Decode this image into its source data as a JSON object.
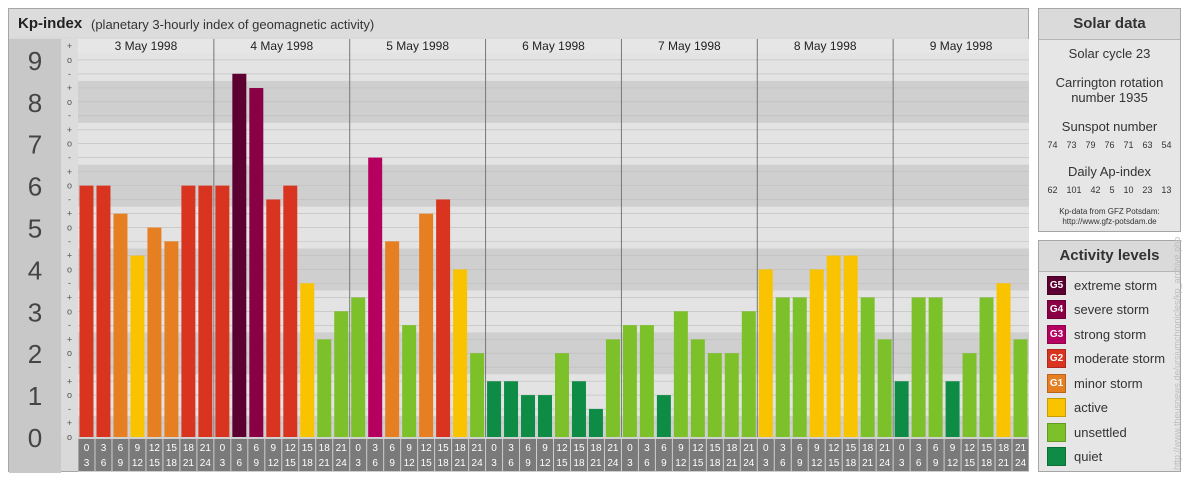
{
  "header": {
    "title": "Kp-index",
    "subtitle": "(planetary 3-hourly index of geomagnetic activity)"
  },
  "chart_data": {
    "type": "bar",
    "title": "Kp-index",
    "subtitle": "(planetary 3-hourly index of geomagnetic activity)",
    "ylim": [
      0,
      9
    ],
    "y_ticks": [
      "0",
      "1",
      "2",
      "3",
      "4",
      "5",
      "6",
      "7",
      "8",
      "9"
    ],
    "sub_ticks": [
      "o",
      "+",
      "-"
    ],
    "days": [
      "3 May 1998",
      "4 May 1998",
      "5 May 1998",
      "6 May 1998",
      "7 May 1998",
      "8 May 1998",
      "9 May 1998"
    ],
    "interval_labels": [
      [
        "0",
        "3"
      ],
      [
        "3",
        "6"
      ],
      [
        "6",
        "9"
      ],
      [
        "9",
        "12"
      ],
      [
        "12",
        "15"
      ],
      [
        "15",
        "18"
      ],
      [
        "18",
        "21"
      ],
      [
        "21",
        "24"
      ]
    ],
    "values": [
      [
        6.0,
        6.0,
        5.33,
        4.33,
        5.0,
        4.67,
        6.0,
        6.0
      ],
      [
        6.0,
        8.67,
        8.33,
        5.67,
        6.0,
        3.67,
        2.33,
        3.0
      ],
      [
        3.33,
        6.67,
        4.67,
        2.67,
        5.33,
        5.67,
        4.0,
        2.0
      ],
      [
        1.33,
        1.33,
        1.0,
        1.0,
        2.0,
        1.33,
        0.67,
        2.33
      ],
      [
        2.67,
        2.67,
        1.0,
        3.0,
        2.33,
        2.0,
        2.0,
        3.0
      ],
      [
        4.0,
        3.33,
        3.33,
        4.0,
        4.33,
        4.33,
        3.33,
        2.33
      ],
      [
        1.33,
        3.33,
        3.33,
        1.33,
        2.0,
        3.33,
        3.67,
        2.33
      ]
    ],
    "grid": true,
    "legend_position": "right"
  },
  "solar": {
    "title": "Solar data",
    "cycle": "Solar cycle 23",
    "carrington_line1": "Carrington rotation",
    "carrington_line2": "number 1935",
    "sunspot_title": "Sunspot number",
    "sunspot_values": [
      "74",
      "73",
      "79",
      "76",
      "71",
      "63",
      "54"
    ],
    "ap_title": "Daily Ap-index",
    "ap_values": [
      "62",
      "101",
      "42",
      "5",
      "10",
      "23",
      "13"
    ],
    "credit_line1": "Kp-data from GFZ Potsdam:",
    "credit_line2": "http://www.gfz-potsdam.de"
  },
  "levels": {
    "title": "Activity levels",
    "items": [
      {
        "badge": "G5",
        "label": "extreme storm",
        "color": "#5c0031"
      },
      {
        "badge": "G4",
        "label": "severe storm",
        "color": "#8a0045"
      },
      {
        "badge": "G3",
        "label": "strong storm",
        "color": "#b5005f"
      },
      {
        "badge": "G2",
        "label": "moderate storm",
        "color": "#d93420"
      },
      {
        "badge": "G1",
        "label": "minor storm",
        "color": "#e67e22"
      },
      {
        "badge": "",
        "label": "active",
        "color": "#f9c300"
      },
      {
        "badge": "",
        "label": "unsettled",
        "color": "#7dc12a"
      },
      {
        "badge": "",
        "label": "quiet",
        "color": "#0e8c45"
      }
    ]
  },
  "watermark": "http://www.theusnews.de/ursiumchronicles/kp_archive.php"
}
